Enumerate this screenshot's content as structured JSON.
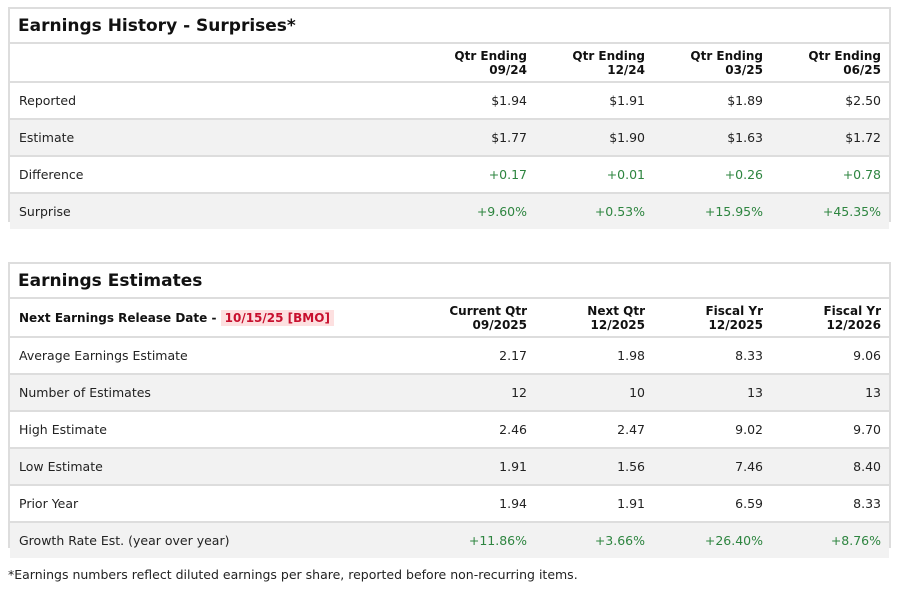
{
  "history": {
    "title": "Earnings History - Surprises*",
    "columns": [
      [
        "Qtr Ending",
        "09/24"
      ],
      [
        "Qtr Ending",
        "12/24"
      ],
      [
        "Qtr Ending",
        "03/25"
      ],
      [
        "Qtr Ending",
        "06/25"
      ]
    ],
    "rows": [
      {
        "label": "Reported",
        "values": [
          "$1.94",
          "$1.91",
          "$1.89",
          "$2.50"
        ],
        "green": false
      },
      {
        "label": "Estimate",
        "values": [
          "$1.77",
          "$1.90",
          "$1.63",
          "$1.72"
        ],
        "green": false
      },
      {
        "label": "Difference",
        "values": [
          "+0.17",
          "+0.01",
          "+0.26",
          "+0.78"
        ],
        "green": true
      },
      {
        "label": "Surprise",
        "values": [
          "+9.60%",
          "+0.53%",
          "+15.95%",
          "+45.35%"
        ],
        "green": true
      }
    ]
  },
  "estimates": {
    "title": "Earnings Estimates",
    "release_label": "Next Earnings Release Date -",
    "release_date": "10/15/25 [BMO]",
    "columns": [
      [
        "Current Qtr",
        "09/2025"
      ],
      [
        "Next Qtr",
        "12/2025"
      ],
      [
        "Fiscal Yr",
        "12/2025"
      ],
      [
        "Fiscal Yr",
        "12/2026"
      ]
    ],
    "rows": [
      {
        "label": "Average Earnings Estimate",
        "values": [
          "2.17",
          "1.98",
          "8.33",
          "9.06"
        ],
        "green": false
      },
      {
        "label": "Number of Estimates",
        "values": [
          "12",
          "10",
          "13",
          "13"
        ],
        "green": false
      },
      {
        "label": "High Estimate",
        "values": [
          "2.46",
          "2.47",
          "9.02",
          "9.70"
        ],
        "green": false
      },
      {
        "label": "Low Estimate",
        "values": [
          "1.91",
          "1.56",
          "7.46",
          "8.40"
        ],
        "green": false
      },
      {
        "label": "Prior Year",
        "values": [
          "1.94",
          "1.91",
          "6.59",
          "8.33"
        ],
        "green": false
      },
      {
        "label": "Growth Rate Est. (year over year)",
        "values": [
          "+11.86%",
          "+3.66%",
          "+26.40%",
          "+8.76%"
        ],
        "green": true
      }
    ]
  },
  "footnote": "*Earnings numbers reflect diluted earnings per share, reported before non-recurring items.",
  "colors": {
    "positive": "#2e8540",
    "release_date": "#c8102e"
  }
}
